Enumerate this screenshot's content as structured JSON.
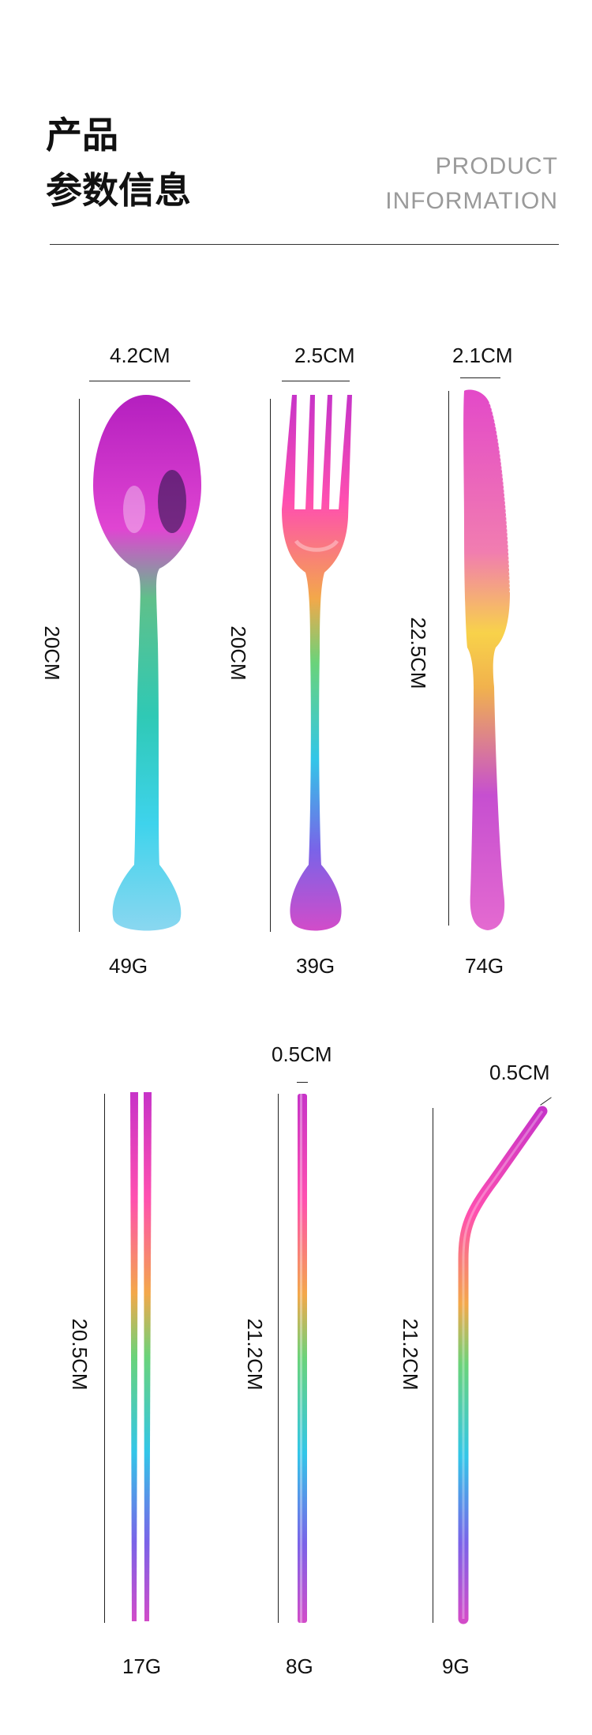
{
  "header": {
    "title_line1": "产品",
    "title_line2": "参数信息",
    "subtitle_line1": "PRODUCT",
    "subtitle_line2": "INFORMATION"
  },
  "items": [
    {
      "name": "spoon",
      "width": "4.2CM",
      "length": "20CM",
      "weight": "49G"
    },
    {
      "name": "fork",
      "width": "2.5CM",
      "length": "20CM",
      "weight": "39G"
    },
    {
      "name": "knife",
      "width": "2.1CM",
      "length": "22.5CM",
      "weight": "74G"
    },
    {
      "name": "chopsticks",
      "length": "20.5CM",
      "weight": "17G"
    },
    {
      "name": "straight-straw",
      "width": "0.5CM",
      "length": "21.2CM",
      "weight": "8G"
    },
    {
      "name": "bent-straw",
      "width": "0.5CM",
      "length": "21.2CM",
      "weight": "9G"
    }
  ]
}
